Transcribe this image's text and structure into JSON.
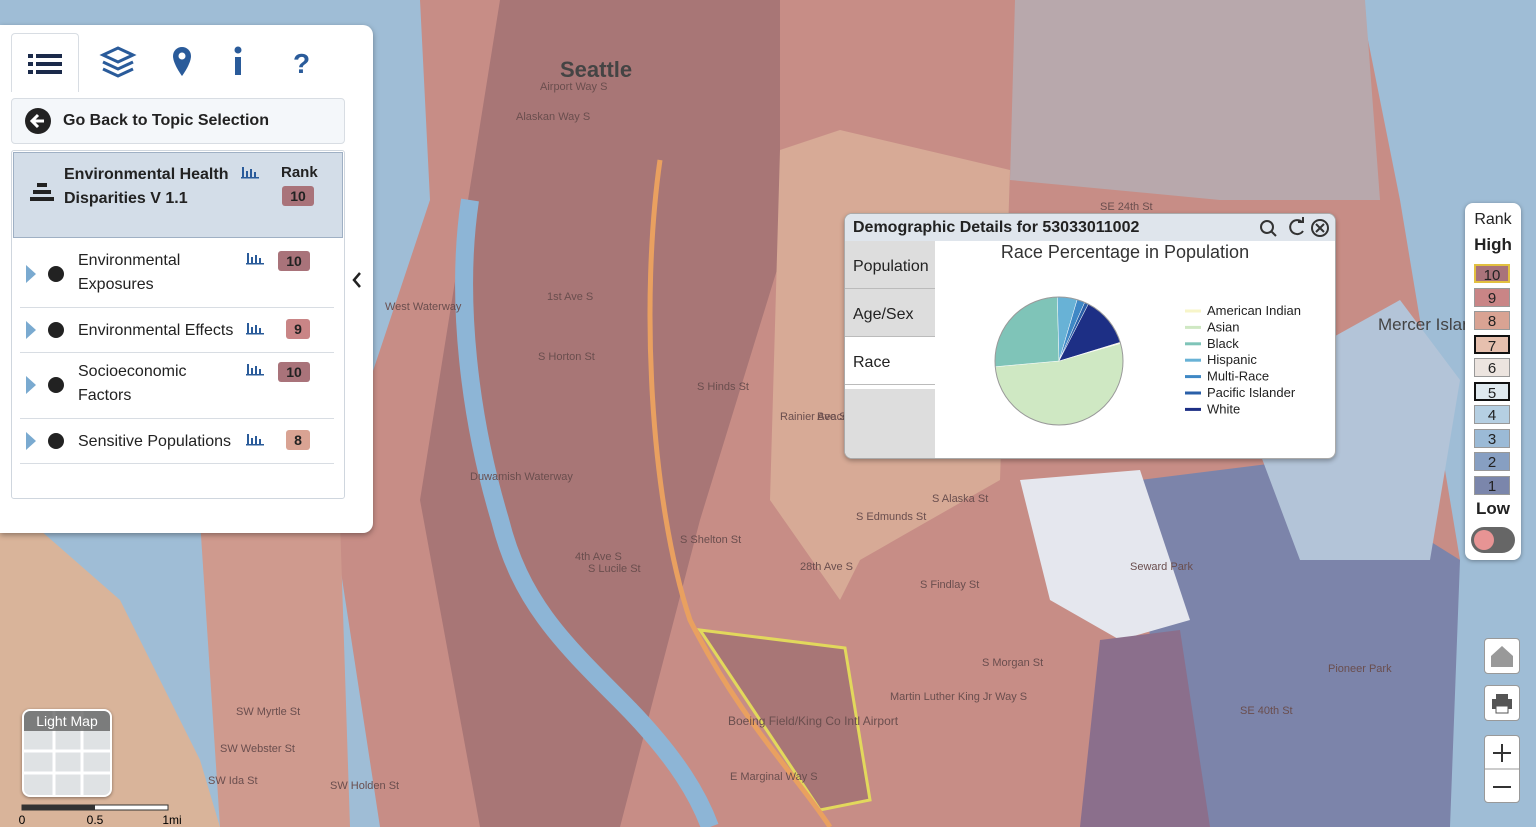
{
  "panel": {
    "back": "Go Back to Topic Selection",
    "topic": {
      "title": "Environmental Health Disparities V 1.1",
      "rank_header": "Rank",
      "rank": 10
    },
    "items": [
      {
        "label": "Environmental Exposures",
        "rank": 10
      },
      {
        "label": "Environmental Effects",
        "rank": 9
      },
      {
        "label": "Socioeconomic Factors",
        "rank": 10
      },
      {
        "label": "Sensitive Populations",
        "rank": 8
      }
    ]
  },
  "popup": {
    "title": "Demographic Details for 53033011002",
    "tabs": [
      "Population",
      "Age/Sex",
      "Race"
    ],
    "chart_data": {
      "type": "pie",
      "title": "Race Percentage in Population",
      "categories": [
        "American Indian",
        "Asian",
        "Black",
        "Hispanic",
        "Multi-Race",
        "Pacific Islander",
        "White"
      ],
      "values": [
        0.3,
        53,
        26,
        5,
        2,
        1,
        12.7
      ],
      "colors": [
        "#f7f5c9",
        "#cfe8c3",
        "#7fc4b8",
        "#68b2d6",
        "#3f88c5",
        "#2a5fa8",
        "#1d2f85"
      ]
    }
  },
  "legend": {
    "title": "Rank",
    "high": "High",
    "low": "Low",
    "ranks": [
      10,
      9,
      8,
      7,
      6,
      5,
      4,
      3,
      2,
      1
    ],
    "colors": [
      "#a9737a",
      "#c98586",
      "#d9a393",
      "#e6c0ae",
      "#ece4df",
      "#dfe9ef",
      "#b5cfe2",
      "#9bbad6",
      "#879fc2",
      "#7b86ab"
    ]
  },
  "map": {
    "labels": [
      "Seattle",
      "Mercer Island",
      "Boeing Field/King Co Intl Airport",
      "Seward Park",
      "Pioneer Park",
      "Duwamish Waterway",
      "West Waterway",
      "S Horton St",
      "S Alaska St",
      "S Edmunds St",
      "S Shelton St",
      "S Lucile St",
      "S Findlay St",
      "S Morgan St",
      "SW Myrtle St",
      "SW Webster St",
      "SW Ida St",
      "SW Holden St",
      "E Marginal Way S",
      "Airport Way S",
      "1st Ave S",
      "4th Ave S",
      "Rainier Ave S",
      "Martin Luther King Jr Way S",
      "28th Ave S",
      "S Hinds St",
      "SE 24th St",
      "SE 40th St",
      "Alaskan Way S",
      "Beacon Ave S"
    ],
    "basemap": "Light Map",
    "scale": [
      "0",
      "0.5",
      "1mi"
    ]
  }
}
